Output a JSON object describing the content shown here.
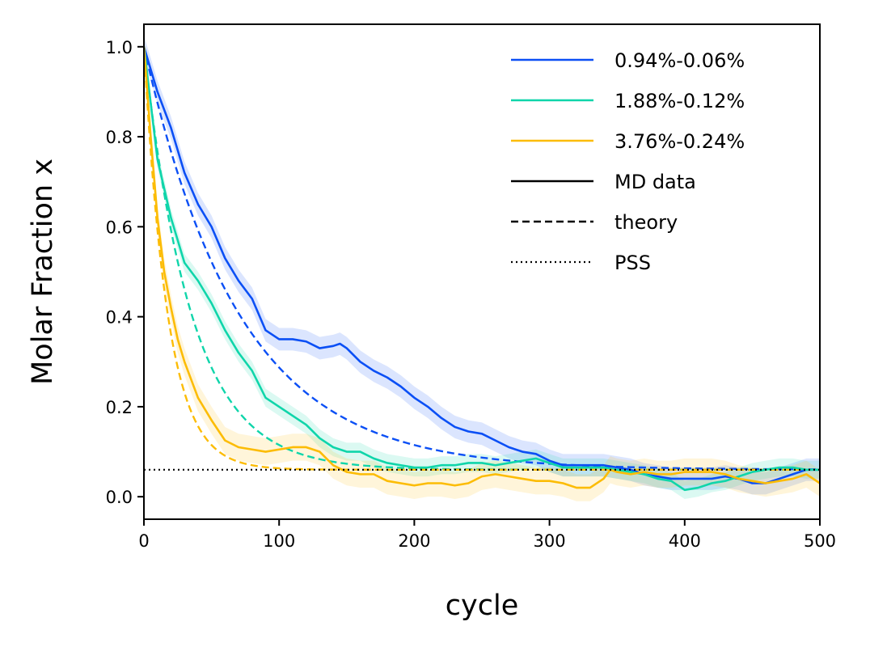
{
  "chart_data": {
    "type": "line",
    "xlabel": "cycle",
    "ylabel": "Molar Fraction x",
    "xlim": [
      0,
      500
    ],
    "ylim": [
      -0.05,
      1.05
    ],
    "xticks": [
      "0",
      "100",
      "200",
      "300",
      "400",
      "500"
    ],
    "yticks": [
      "0.0",
      "0.2",
      "0.4",
      "0.6",
      "0.8",
      "1.0"
    ],
    "grid": false,
    "legend_position": "top-right",
    "colors": {
      "blue": "#0b4ff5",
      "teal": "#0fd5aa",
      "yellow": "#fcbc05",
      "black": "#000000"
    },
    "legend": [
      {
        "label": "0.94%-0.06%",
        "color": "#0b4ff5",
        "style": "solid"
      },
      {
        "label": "1.88%-0.12%",
        "color": "#0fd5aa",
        "style": "solid"
      },
      {
        "label": "3.76%-0.24%",
        "color": "#fcbc05",
        "style": "solid"
      },
      {
        "label": "MD data",
        "color": "#000000",
        "style": "solid"
      },
      {
        "label": "theory",
        "color": "#000000",
        "style": "dashed"
      },
      {
        "label": "PSS",
        "color": "#000000",
        "style": "dotted"
      }
    ],
    "series": [
      {
        "name": "0.94%-0.06%",
        "kind": "MD data",
        "color": "#0b4ff5",
        "x": [
          0,
          10,
          20,
          30,
          40,
          50,
          60,
          70,
          80,
          90,
          100,
          110,
          120,
          130,
          140,
          145,
          150,
          160,
          170,
          180,
          190,
          200,
          210,
          220,
          230,
          240,
          250,
          260,
          270,
          280,
          290,
          300,
          310,
          320,
          330,
          340,
          350,
          360,
          370,
          380,
          390,
          400,
          410,
          420,
          430,
          440,
          450,
          460,
          470,
          480,
          490,
          500
        ],
        "y": [
          1.0,
          0.9,
          0.82,
          0.72,
          0.65,
          0.6,
          0.53,
          0.48,
          0.44,
          0.37,
          0.35,
          0.35,
          0.345,
          0.33,
          0.335,
          0.34,
          0.33,
          0.3,
          0.28,
          0.265,
          0.245,
          0.22,
          0.2,
          0.175,
          0.155,
          0.145,
          0.14,
          0.125,
          0.11,
          0.1,
          0.095,
          0.08,
          0.07,
          0.07,
          0.07,
          0.07,
          0.065,
          0.06,
          0.05,
          0.045,
          0.04,
          0.04,
          0.04,
          0.04,
          0.045,
          0.04,
          0.03,
          0.03,
          0.04,
          0.05,
          0.06,
          0.06
        ],
        "band": 0.025
      },
      {
        "name": "1.88%-0.12%",
        "kind": "MD data",
        "color": "#0fd5aa",
        "x": [
          0,
          10,
          20,
          30,
          40,
          50,
          60,
          70,
          80,
          90,
          100,
          110,
          120,
          130,
          140,
          150,
          160,
          170,
          180,
          190,
          200,
          210,
          220,
          230,
          240,
          250,
          260,
          270,
          280,
          290,
          300,
          310,
          320,
          330,
          340,
          350,
          360,
          370,
          380,
          390,
          400,
          410,
          420,
          430,
          440,
          450,
          460,
          470,
          480,
          490,
          500
        ],
        "y": [
          1.0,
          0.75,
          0.62,
          0.52,
          0.48,
          0.43,
          0.37,
          0.32,
          0.28,
          0.22,
          0.2,
          0.18,
          0.16,
          0.13,
          0.11,
          0.1,
          0.1,
          0.085,
          0.075,
          0.07,
          0.065,
          0.065,
          0.07,
          0.07,
          0.075,
          0.075,
          0.07,
          0.075,
          0.08,
          0.085,
          0.075,
          0.065,
          0.065,
          0.065,
          0.065,
          0.06,
          0.055,
          0.05,
          0.04,
          0.035,
          0.015,
          0.02,
          0.03,
          0.035,
          0.045,
          0.055,
          0.06,
          0.065,
          0.065,
          0.06,
          0.06
        ],
        "band": 0.02
      },
      {
        "name": "3.76%-0.24%",
        "kind": "MD data",
        "color": "#fcbc05",
        "x": [
          0,
          5,
          10,
          15,
          20,
          25,
          30,
          35,
          40,
          50,
          60,
          70,
          80,
          90,
          100,
          110,
          120,
          130,
          140,
          150,
          160,
          170,
          180,
          190,
          200,
          210,
          220,
          230,
          240,
          250,
          260,
          270,
          280,
          290,
          300,
          310,
          320,
          330,
          340,
          345,
          350,
          360,
          370,
          380,
          390,
          400,
          410,
          420,
          430,
          440,
          450,
          460,
          470,
          480,
          490,
          500
        ],
        "y": [
          1.0,
          0.8,
          0.62,
          0.5,
          0.42,
          0.35,
          0.3,
          0.26,
          0.22,
          0.17,
          0.125,
          0.11,
          0.105,
          0.1,
          0.105,
          0.11,
          0.11,
          0.1,
          0.07,
          0.055,
          0.05,
          0.05,
          0.035,
          0.03,
          0.025,
          0.03,
          0.03,
          0.025,
          0.03,
          0.045,
          0.05,
          0.045,
          0.04,
          0.035,
          0.035,
          0.03,
          0.02,
          0.02,
          0.04,
          0.06,
          0.055,
          0.05,
          0.055,
          0.05,
          0.05,
          0.055,
          0.055,
          0.055,
          0.05,
          0.04,
          0.035,
          0.03,
          0.035,
          0.04,
          0.05,
          0.03
        ],
        "band": 0.03
      },
      {
        "name": "0.94%-0.06%",
        "kind": "theory",
        "color": "#0b4ff5",
        "x0": 0.06,
        "k": 0.0142
      },
      {
        "name": "1.88%-0.12%",
        "kind": "theory",
        "color": "#0fd5aa",
        "x0": 0.06,
        "k": 0.0284
      },
      {
        "name": "3.76%-0.24%",
        "kind": "theory",
        "color": "#fcbc05",
        "x0": 0.06,
        "k": 0.0568
      },
      {
        "name": "PSS",
        "kind": "PSS",
        "color": "#000000",
        "y": 0.06
      }
    ]
  }
}
